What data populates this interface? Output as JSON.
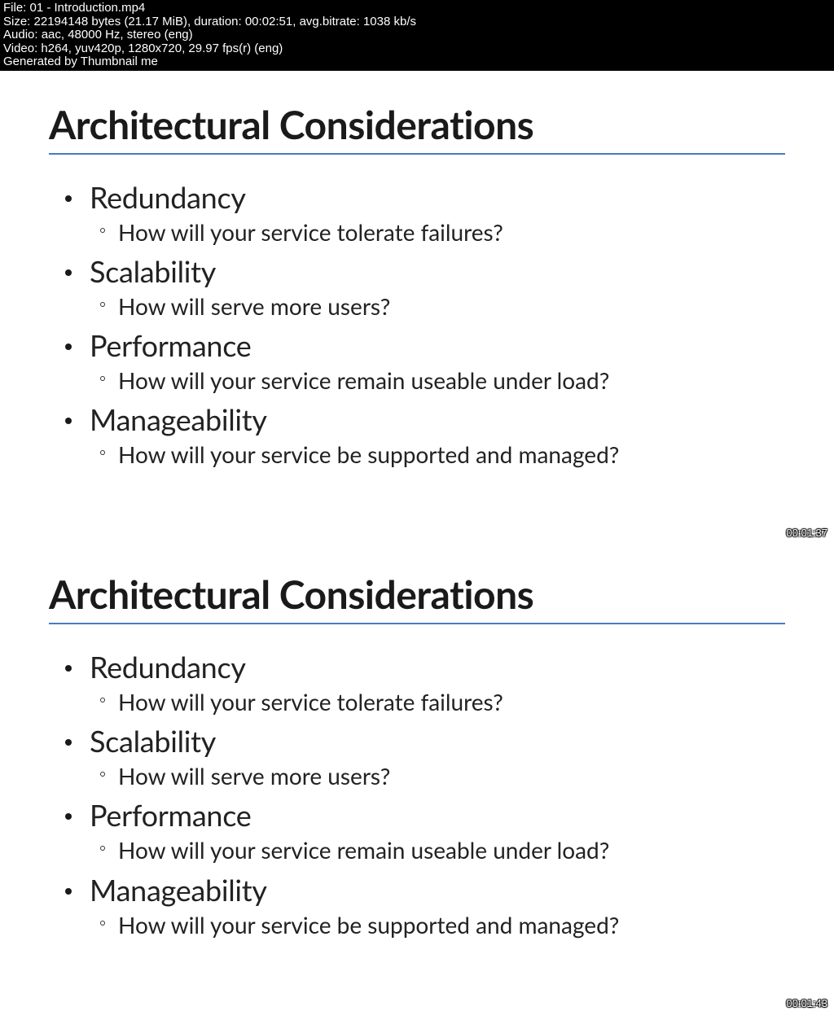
{
  "header": {
    "file_line": "File: 01 - Introduction.mp4",
    "size_line": "Size: 22194148 bytes (21.17 MiB), duration: 00:02:51, avg.bitrate: 1038 kb/s",
    "audio_line": "Audio: aac, 48000 Hz, stereo (eng)",
    "video_line": "Video: h264, yuv420p, 1280x720, 29.97 fps(r) (eng)",
    "generated_line": "Generated by Thumbnail me"
  },
  "colors": {
    "header_bg": "#000000",
    "header_fg": "#ffffff",
    "slide_bg": "#ffffff",
    "title_color": "#1a1a1a",
    "rule_color": "#4a7abf",
    "text_color": "#222222"
  },
  "slides": [
    {
      "title": "Architectural Considerations",
      "timestamp": "00:01:37",
      "items": [
        {
          "title": "Redundancy",
          "sub": "How will your service tolerate failures?"
        },
        {
          "title": "Scalability",
          "sub": "How will serve more users?"
        },
        {
          "title": "Performance",
          "sub": "How will your service remain useable under load?"
        },
        {
          "title": "Manageability",
          "sub": "How will your service be supported and managed?"
        }
      ]
    },
    {
      "title": "Architectural Considerations",
      "timestamp": "00:01:43",
      "items": [
        {
          "title": "Redundancy",
          "sub": "How will your service tolerate failures?"
        },
        {
          "title": "Scalability",
          "sub": "How will serve more users?"
        },
        {
          "title": "Performance",
          "sub": "How will your service remain useable under load?"
        },
        {
          "title": "Manageability",
          "sub": "How will your service be supported and managed?"
        }
      ]
    }
  ]
}
